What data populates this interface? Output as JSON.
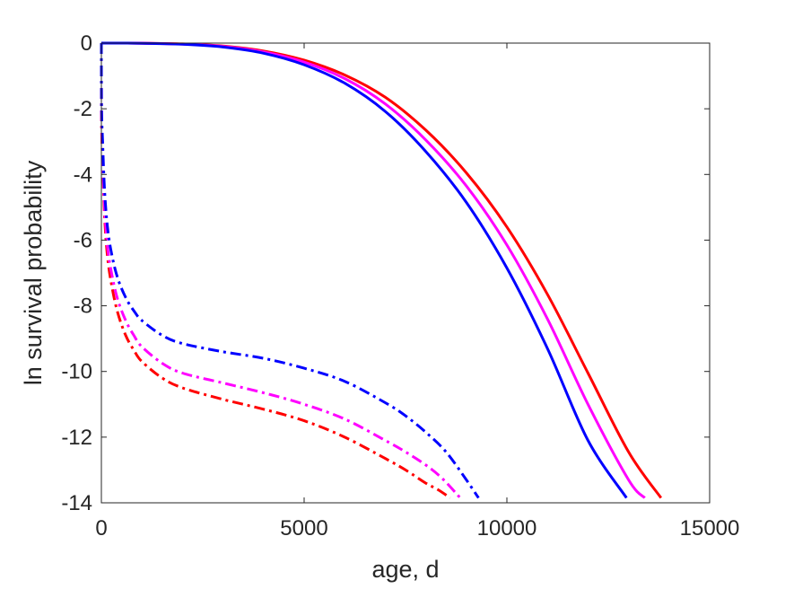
{
  "chart_data": {
    "type": "line",
    "title": "",
    "xlabel": "age, d",
    "ylabel": "ln survival probability",
    "xlim": [
      0,
      15000
    ],
    "ylim": [
      -14,
      0
    ],
    "xticks": [
      0,
      5000,
      10000,
      15000
    ],
    "yticks": [
      0,
      -2,
      -4,
      -6,
      -8,
      -10,
      -12,
      -14
    ],
    "grid": false,
    "legend": "none",
    "box": true,
    "series": [
      {
        "color": "#ff0000",
        "style": "solid",
        "x": [
          0,
          1000,
          2000,
          3000,
          4000,
          5000,
          6000,
          7000,
          8000,
          9000,
          10000,
          11000,
          12000,
          13000,
          13800
        ],
        "y": [
          0,
          -0.003,
          -0.025,
          -0.09,
          -0.24,
          -0.52,
          -0.97,
          -1.65,
          -2.65,
          -3.95,
          -5.6,
          -7.65,
          -10.05,
          -12.45,
          -13.85
        ]
      },
      {
        "color": "#ff00ff",
        "style": "solid",
        "x": [
          0,
          1000,
          2000,
          3000,
          4000,
          5000,
          6000,
          7000,
          8000,
          9000,
          10000,
          11000,
          12000,
          13000,
          13400
        ],
        "y": [
          0,
          -0.004,
          -0.03,
          -0.1,
          -0.27,
          -0.58,
          -1.08,
          -1.85,
          -2.95,
          -4.35,
          -6.15,
          -8.4,
          -11.0,
          -13.3,
          -13.85
        ]
      },
      {
        "color": "#0000ff",
        "style": "solid",
        "x": [
          0,
          1000,
          2000,
          3000,
          4000,
          5000,
          6000,
          7000,
          8000,
          9000,
          10000,
          11000,
          12000,
          12950
        ],
        "y": [
          0,
          -0.005,
          -0.035,
          -0.12,
          -0.31,
          -0.66,
          -1.22,
          -2.08,
          -3.3,
          -4.85,
          -6.85,
          -9.3,
          -12.1,
          -13.85
        ]
      },
      {
        "color": "#ff0000",
        "style": "dashdot",
        "x": [
          0,
          5,
          30,
          80,
          150,
          250,
          400,
          600,
          800,
          1000,
          1500,
          2000,
          3000,
          4000,
          5000,
          6000,
          7000,
          7500,
          8000,
          8300,
          8600
        ],
        "y": [
          0,
          -2.5,
          -3.6,
          -5.3,
          -6.5,
          -7.35,
          -8.2,
          -8.9,
          -9.35,
          -9.7,
          -10.2,
          -10.5,
          -10.85,
          -11.15,
          -11.5,
          -12.0,
          -12.65,
          -13.0,
          -13.4,
          -13.6,
          -13.85
        ]
      },
      {
        "color": "#ff00ff",
        "style": "dashdot",
        "x": [
          0,
          5,
          30,
          80,
          150,
          250,
          400,
          600,
          800,
          1000,
          1500,
          2000,
          3000,
          4000,
          5000,
          6000,
          7000,
          7500,
          8000,
          8400,
          8850
        ],
        "y": [
          0,
          -2.3,
          -3.4,
          -5.0,
          -6.2,
          -7.0,
          -7.8,
          -8.45,
          -8.9,
          -9.25,
          -9.75,
          -10.05,
          -10.35,
          -10.65,
          -11.0,
          -11.45,
          -12.1,
          -12.45,
          -12.85,
          -13.25,
          -13.85
        ]
      },
      {
        "color": "#0000ff",
        "style": "dashdot",
        "x": [
          0,
          5,
          30,
          80,
          150,
          250,
          400,
          600,
          800,
          1000,
          1500,
          2000,
          3000,
          4000,
          5000,
          6000,
          7000,
          7500,
          8000,
          8500,
          9000,
          9300
        ],
        "y": [
          0,
          -2.0,
          -3.0,
          -4.5,
          -5.6,
          -6.4,
          -7.15,
          -7.75,
          -8.15,
          -8.45,
          -8.9,
          -9.15,
          -9.4,
          -9.6,
          -9.9,
          -10.3,
          -10.95,
          -11.35,
          -11.85,
          -12.45,
          -13.3,
          -13.85
        ]
      }
    ]
  }
}
